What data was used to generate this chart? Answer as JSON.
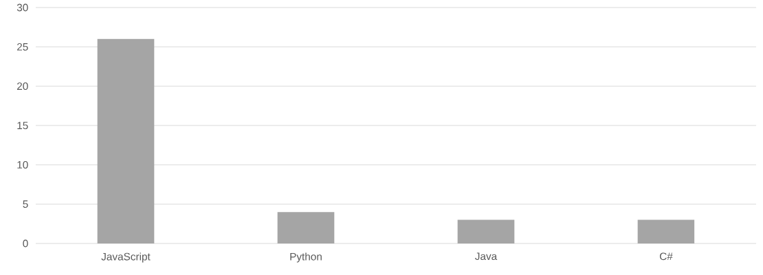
{
  "chart_data": {
    "type": "bar",
    "categories": [
      "JavaScript",
      "Python",
      "Java",
      "C#"
    ],
    "values": [
      26,
      4,
      3,
      3
    ],
    "color": "#a5a5a5",
    "ylim": [
      0,
      30
    ],
    "yticks": [
      0,
      5,
      10,
      15,
      20,
      25,
      30
    ],
    "grid": "y"
  }
}
